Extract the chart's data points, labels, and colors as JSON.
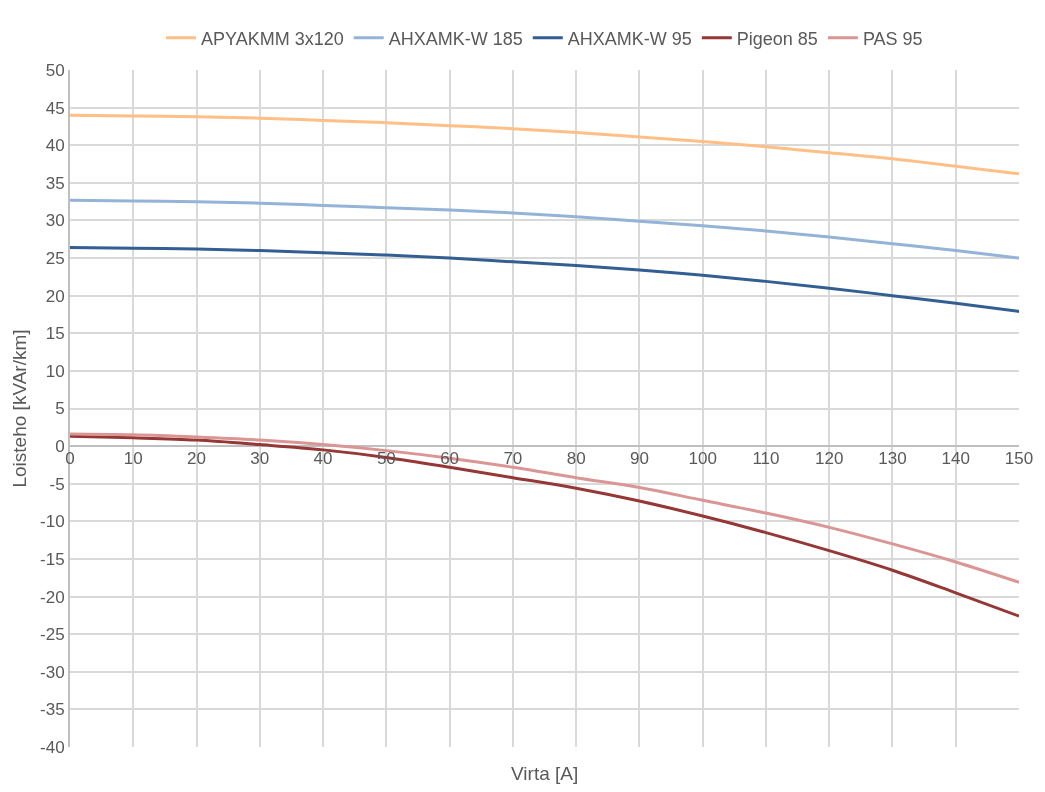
{
  "chart_data": {
    "type": "line",
    "xlabel": "Virta [A]",
    "ylabel": "Loisteho [kVAr/km]",
    "x": [
      0,
      10,
      20,
      30,
      40,
      50,
      60,
      70,
      80,
      90,
      100,
      110,
      120,
      130,
      140,
      150
    ],
    "series": [
      {
        "name": "APYAKMM 3x120",
        "color": "#ffbf86",
        "values": [
          44,
          43.9,
          43.8,
          43.6,
          43.3,
          43.0,
          42.6,
          42.2,
          41.7,
          41.1,
          40.5,
          39.8,
          39.0,
          38.2,
          37.2,
          36.2
        ]
      },
      {
        "name": "AHXAMK-W 185",
        "color": "#95b3d7",
        "values": [
          32.7,
          32.6,
          32.5,
          32.3,
          32.0,
          31.7,
          31.4,
          31.0,
          30.5,
          29.9,
          29.3,
          28.6,
          27.8,
          26.9,
          26.0,
          25.0
        ]
      },
      {
        "name": "AHXAMK-W 95",
        "color": "#335e92",
        "values": [
          26.4,
          26.3,
          26.2,
          26.0,
          25.7,
          25.4,
          25.0,
          24.5,
          24.0,
          23.4,
          22.7,
          21.9,
          21.0,
          20.0,
          19.0,
          17.9
        ]
      },
      {
        "name": "Pigeon 85",
        "color": "#953735",
        "values": [
          1.3,
          1.1,
          0.8,
          0.2,
          -0.5,
          -1.5,
          -2.8,
          -4.2,
          -5.6,
          -7.3,
          -9.3,
          -11.5,
          -13.9,
          -16.5,
          -19.5,
          -22.6
        ]
      },
      {
        "name": "PAS 95",
        "color": "#da9694",
        "values": [
          1.6,
          1.5,
          1.2,
          0.8,
          0.2,
          -0.6,
          -1.6,
          -2.8,
          -4.2,
          -5.5,
          -7.2,
          -8.9,
          -10.8,
          -13.0,
          -15.4,
          -18.1
        ]
      }
    ],
    "xlim": [
      0,
      150
    ],
    "xticks": [
      0,
      10,
      20,
      30,
      40,
      50,
      60,
      70,
      80,
      90,
      100,
      110,
      120,
      130,
      140,
      150
    ],
    "ylim": [
      -40,
      50
    ],
    "yticks": [
      -40,
      -35,
      -30,
      -25,
      -20,
      -15,
      -10,
      -5,
      0,
      5,
      10,
      15,
      20,
      25,
      30,
      35,
      40,
      45,
      50
    ],
    "grid": true,
    "legend": "top",
    "marker": "none",
    "line_style": "solid"
  }
}
